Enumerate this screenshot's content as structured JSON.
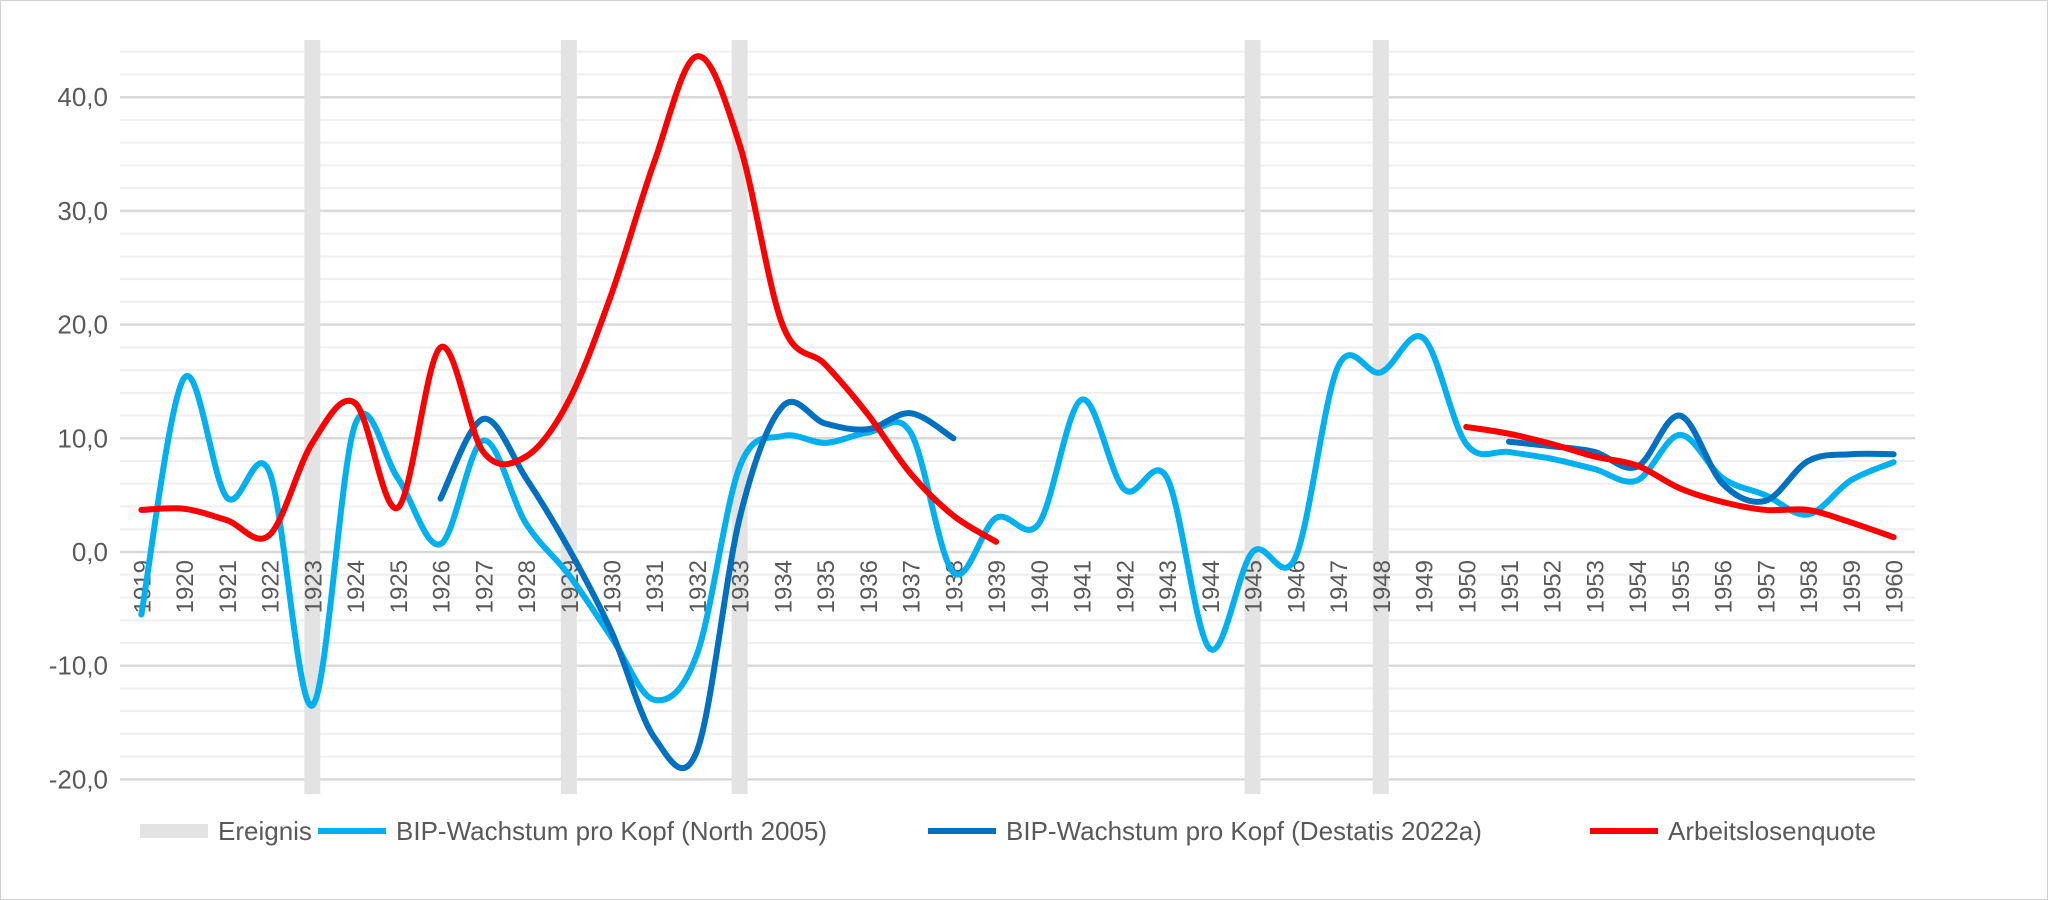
{
  "chart_data": {
    "type": "line",
    "title": "",
    "xlabel": "",
    "ylabel": "",
    "ylim": [
      -20,
      45
    ],
    "yticks": [
      "-20,0",
      "-10,0",
      "0,0",
      "10,0",
      "20,0",
      "30,0",
      "40,0"
    ],
    "ytick_values": [
      -20,
      -10,
      0,
      10,
      20,
      30,
      40
    ],
    "minor_grid_step": 2,
    "grid": true,
    "legend_position": "bottom",
    "categories": [
      "1919",
      "1920",
      "1921",
      "1922",
      "1923",
      "1924",
      "1925",
      "1926",
      "1927",
      "1928",
      "1929",
      "1930",
      "1931",
      "1932",
      "1933",
      "1934",
      "1935",
      "1936",
      "1937",
      "1938",
      "1939",
      "1940",
      "1941",
      "1942",
      "1943",
      "1944",
      "1945",
      "1946",
      "1947",
      "1948",
      "1949",
      "1950",
      "1951",
      "1952",
      "1953",
      "1954",
      "1955",
      "1956",
      "1957",
      "1958",
      "1959",
      "1960"
    ],
    "events": {
      "name": "Ereignis",
      "color": "#e3e3e3",
      "years": [
        "1923",
        "1929",
        "1933",
        "1945",
        "1948"
      ]
    },
    "series": [
      {
        "name": "BIP-Wachstum pro Kopf (North 2005)",
        "color": "#00b0f0",
        "values": [
          -5.5,
          15.3,
          4.8,
          7.0,
          -13.5,
          11.2,
          6.5,
          0.7,
          9.8,
          2.5,
          -2.0,
          -7.5,
          -13.0,
          -9.0,
          7.5,
          10.2,
          9.6,
          10.5,
          10.5,
          -1.8,
          3.0,
          2.5,
          13.4,
          5.5,
          6.5,
          -8.5,
          0.0,
          -0.5,
          16.3,
          15.8,
          18.8,
          9.5,
          8.8,
          8.2,
          7.3,
          6.3,
          10.3,
          6.5,
          5.0,
          3.3,
          6.3,
          7.9
        ]
      },
      {
        "name": "BIP-Wachstum pro Kopf (Destatis 2022a)",
        "color": "#0070c0",
        "values": [
          null,
          null,
          null,
          null,
          null,
          null,
          null,
          4.7,
          11.7,
          6.5,
          0.3,
          -7.0,
          -16.3,
          -17.5,
          3.0,
          12.8,
          11.3,
          10.8,
          12.2,
          10.0,
          null,
          null,
          null,
          null,
          null,
          null,
          null,
          null,
          null,
          null,
          null,
          null,
          9.7,
          9.3,
          8.8,
          7.5,
          12.0,
          6.0,
          4.5,
          8.0,
          8.6,
          8.6
        ]
      },
      {
        "name": "Arbeitslosenquote",
        "color": "#ff0000",
        "values": [
          3.7,
          3.8,
          2.8,
          1.5,
          9.6,
          13.1,
          3.9,
          18.0,
          8.8,
          8.4,
          13.3,
          22.7,
          34.3,
          43.6,
          35.8,
          20.0,
          16.5,
          12.1,
          6.9,
          3.2,
          0.9,
          null,
          null,
          null,
          null,
          null,
          null,
          null,
          null,
          null,
          null,
          11.0,
          10.4,
          9.5,
          8.4,
          7.6,
          5.6,
          4.4,
          3.7,
          3.7,
          2.6,
          1.3
        ]
      }
    ]
  }
}
